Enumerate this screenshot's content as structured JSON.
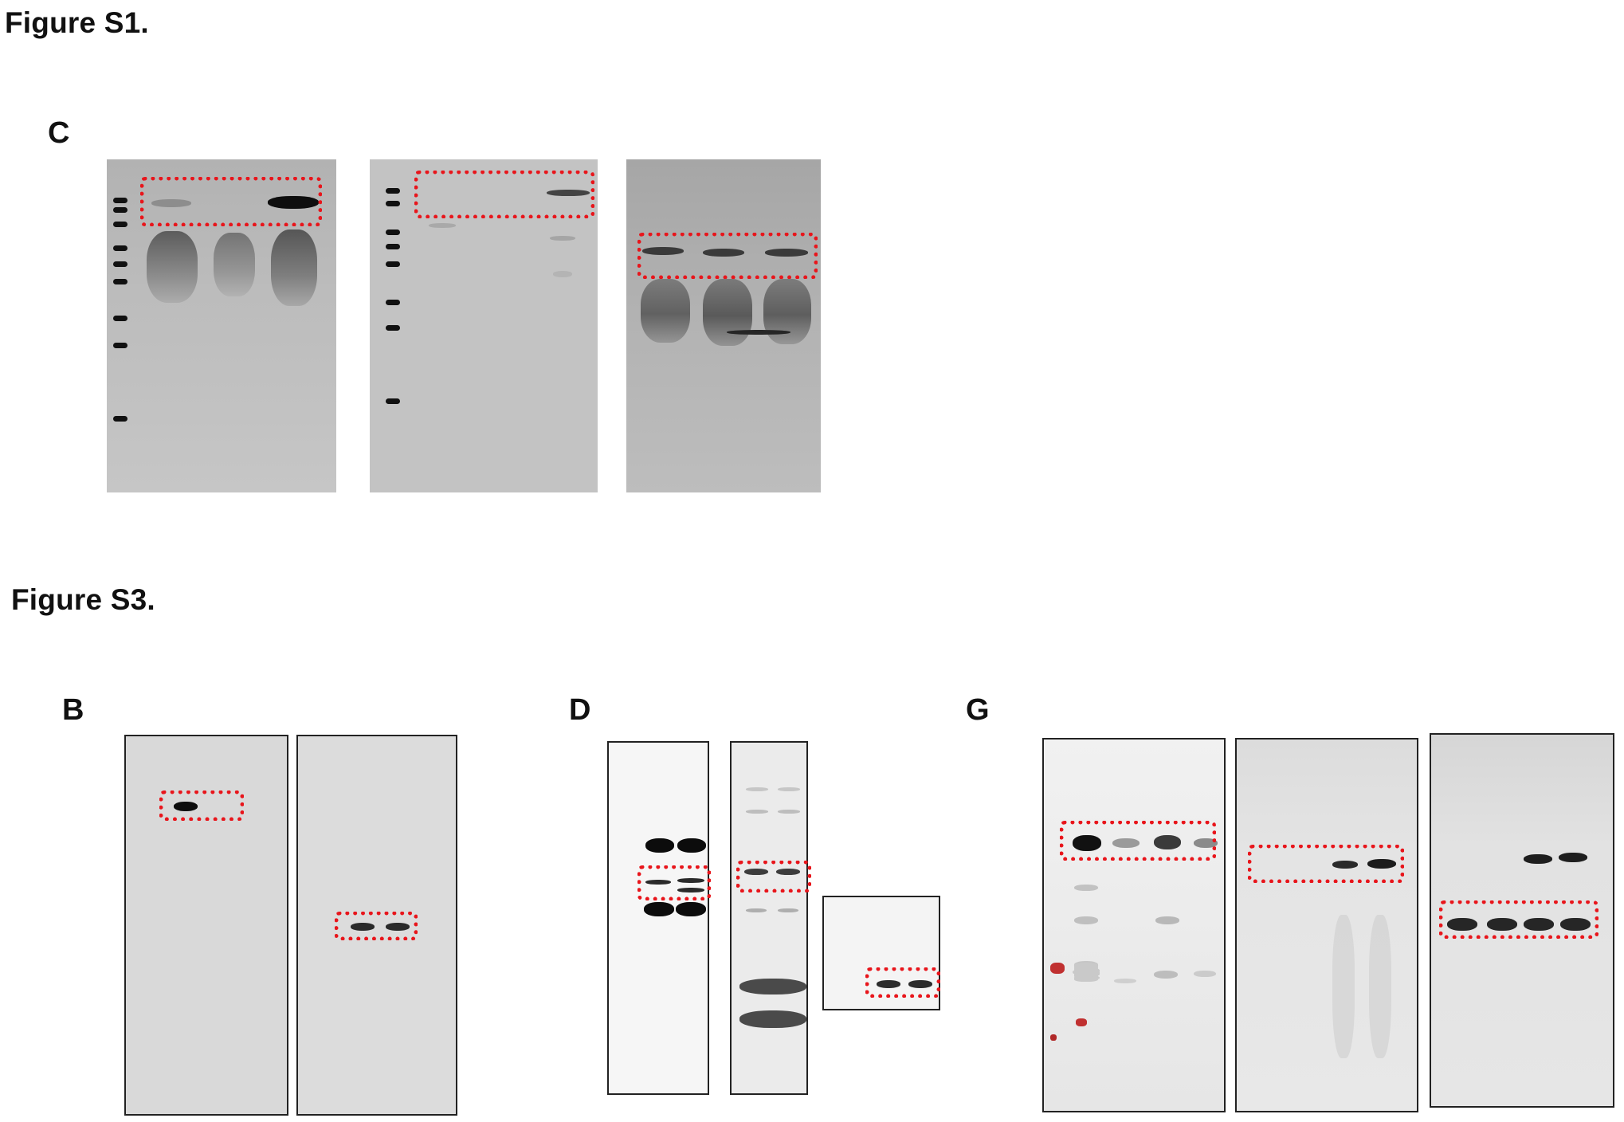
{
  "headings": {
    "figure_s1": "Figure S1.",
    "figure_s3": "Figure S3."
  },
  "panels": {
    "s1_c": "C",
    "s3_b": "B",
    "s3_d": "D",
    "s3_g": "G"
  },
  "colors": {
    "highlight_box": "#e8151b",
    "blot_gray": "#b9b9b9",
    "band_dark": "#111111"
  }
}
